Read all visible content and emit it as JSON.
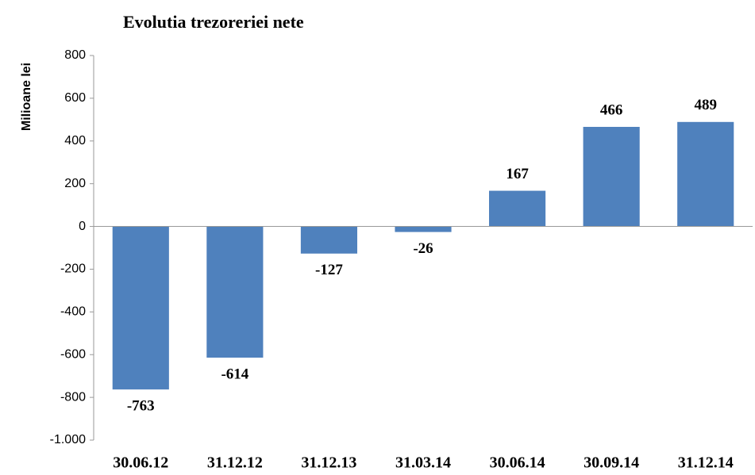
{
  "chart_data": {
    "type": "bar",
    "title": "Evolutia trezoreriei nete",
    "y_label": "Milioane lei",
    "categories": [
      "30.06.12",
      "31.12.12",
      "31.12.13",
      "31.03.14",
      "30.06.14",
      "30.09.14",
      "31.12.14"
    ],
    "values": [
      -763,
      -614,
      -127,
      -26,
      167,
      466,
      489
    ],
    "color": "#4f81bd",
    "ylim": [
      -1000,
      800
    ],
    "yticks": [
      {
        "value": -1000,
        "label": "-1.000"
      },
      -800,
      -600,
      -400,
      -200,
      0,
      200,
      400,
      600,
      800
    ],
    "grid": false
  }
}
